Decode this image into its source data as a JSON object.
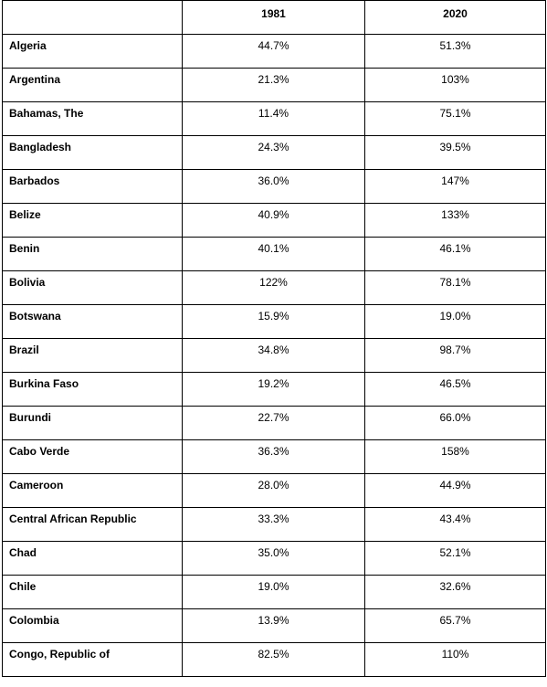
{
  "table": {
    "headers": [
      "",
      "1981",
      "2020"
    ],
    "rows": [
      {
        "country": "Algeria",
        "v1981": "44.7%",
        "v2020": "51.3%"
      },
      {
        "country": "Argentina",
        "v1981": "21.3%",
        "v2020": "103%"
      },
      {
        "country": "Bahamas, The",
        "v1981": "11.4%",
        "v2020": "75.1%"
      },
      {
        "country": "Bangladesh",
        "v1981": "24.3%",
        "v2020": "39.5%"
      },
      {
        "country": "Barbados",
        "v1981": "36.0%",
        "v2020": "147%"
      },
      {
        "country": "Belize",
        "v1981": "40.9%",
        "v2020": "133%"
      },
      {
        "country": "Benin",
        "v1981": "40.1%",
        "v2020": "46.1%"
      },
      {
        "country": "Bolivia",
        "v1981": "122%",
        "v2020": "78.1%"
      },
      {
        "country": "Botswana",
        "v1981": "15.9%",
        "v2020": "19.0%"
      },
      {
        "country": "Brazil",
        "v1981": "34.8%",
        "v2020": "98.7%"
      },
      {
        "country": "Burkina Faso",
        "v1981": "19.2%",
        "v2020": "46.5%"
      },
      {
        "country": "Burundi",
        "v1981": "22.7%",
        "v2020": "66.0%"
      },
      {
        "country": "Cabo Verde",
        "v1981": "36.3%",
        "v2020": "158%"
      },
      {
        "country": "Cameroon",
        "v1981": "28.0%",
        "v2020": "44.9%"
      },
      {
        "country": "Central African Republic",
        "v1981": "33.3%",
        "v2020": "43.4%"
      },
      {
        "country": "Chad",
        "v1981": "35.0%",
        "v2020": "52.1%"
      },
      {
        "country": "Chile",
        "v1981": "19.0%",
        "v2020": "32.6%"
      },
      {
        "country": "Colombia",
        "v1981": "13.9%",
        "v2020": "65.7%"
      },
      {
        "country": "Congo, Republic of",
        "v1981": "82.5%",
        "v2020": "110%"
      }
    ]
  }
}
